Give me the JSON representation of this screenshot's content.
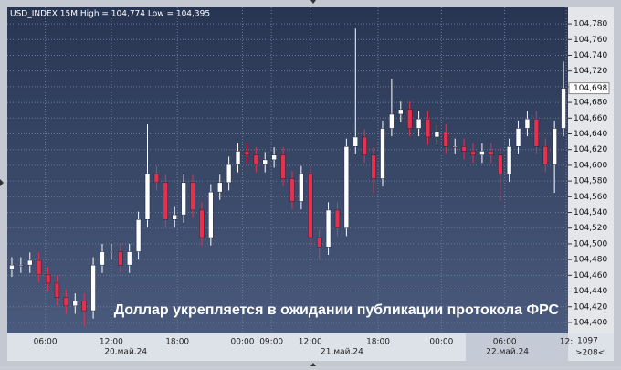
{
  "chart_data": {
    "type": "candlestick",
    "title": "USD_INDEX 15M High = 104,774 Low = 104,395",
    "annotation": "Доллар укрепляется в ожидании публикации протокола ФРС",
    "ylim": [
      104.386,
      104.801
    ],
    "yticks": [
      {
        "value": 104.4,
        "label": "104,400"
      },
      {
        "value": 104.42,
        "label": "104,420"
      },
      {
        "value": 104.44,
        "label": "104,440"
      },
      {
        "value": 104.46,
        "label": "104,460"
      },
      {
        "value": 104.48,
        "label": "104,480"
      },
      {
        "value": 104.5,
        "label": "104,500"
      },
      {
        "value": 104.52,
        "label": "104,520"
      },
      {
        "value": 104.54,
        "label": "104,540"
      },
      {
        "value": 104.56,
        "label": "104,560"
      },
      {
        "value": 104.58,
        "label": "104,580"
      },
      {
        "value": 104.6,
        "label": "104,600"
      },
      {
        "value": 104.62,
        "label": "104,620"
      },
      {
        "value": 104.64,
        "label": "104,640"
      },
      {
        "value": 104.66,
        "label": "104,660"
      },
      {
        "value": 104.68,
        "label": "104,680"
      },
      {
        "value": 104.7,
        "label": "104,700"
      },
      {
        "value": 104.72,
        "label": "104,720"
      },
      {
        "value": 104.74,
        "label": "104,740"
      },
      {
        "value": 104.76,
        "label": "104,760"
      },
      {
        "value": 104.78,
        "label": "104,780"
      }
    ],
    "last_price": {
      "value": 104.698,
      "label": "104,698"
    },
    "xlim": [
      -0.5,
      61.5
    ],
    "xticks": [
      {
        "value": 3.7,
        "label": "06:00"
      },
      {
        "value": 11,
        "label": "12:00"
      },
      {
        "value": 18.3,
        "label": "18:00"
      },
      {
        "value": 25.5,
        "label": "00:00"
      },
      {
        "value": 28.7,
        "label": "09:00"
      },
      {
        "value": 33,
        "label": "12:00"
      },
      {
        "value": 40.5,
        "label": "18:00"
      },
      {
        "value": 47.5,
        "label": "00:00"
      },
      {
        "value": 54.5,
        "label": "06:00"
      },
      {
        "value": 61.3,
        "label": "12:"
      }
    ],
    "date_ticks": [
      {
        "value": 12.6,
        "label": "20.май.24"
      },
      {
        "value": 36.5,
        "label": "21.май.24"
      },
      {
        "value": 54.8,
        "label": "22.май.24"
      }
    ],
    "bar_count": 1097,
    "scroll_label": ">208<",
    "grid": true,
    "up_color": "#ffffff",
    "down_color": "#e8304c",
    "open": [
      104.468,
      104.473,
      104.473,
      104.479,
      104.461,
      104.45,
      104.432,
      104.421,
      104.427,
      104.415,
      104.473,
      104.49,
      104.49,
      104.473,
      104.49,
      104.531,
      104.589,
      104.578,
      104.531,
      104.537,
      104.578,
      104.543,
      104.508,
      104.566,
      104.578,
      104.601,
      104.618,
      104.613,
      104.601,
      104.607,
      104.613,
      104.583,
      104.554,
      104.589,
      104.508,
      104.496,
      104.543,
      104.52,
      104.624,
      104.636,
      104.613,
      104.583,
      104.647,
      104.665,
      104.671,
      104.647,
      104.659,
      104.636,
      104.642,
      104.624,
      104.624,
      104.618,
      104.613,
      104.618,
      104.613,
      104.589,
      104.624,
      104.647,
      104.659,
      104.624,
      104.601,
      104.647
    ],
    "high": [
      104.483,
      104.483,
      104.489,
      104.489,
      104.471,
      104.46,
      104.442,
      104.437,
      104.437,
      104.483,
      104.5,
      104.5,
      104.5,
      104.5,
      104.541,
      104.652,
      104.599,
      104.588,
      104.547,
      104.588,
      104.588,
      104.553,
      104.576,
      104.588,
      104.611,
      104.628,
      104.628,
      104.623,
      104.617,
      104.623,
      104.623,
      104.593,
      104.599,
      104.599,
      104.518,
      104.553,
      104.553,
      104.634,
      104.774,
      104.646,
      104.623,
      104.657,
      104.71,
      104.681,
      104.681,
      104.669,
      104.669,
      104.652,
      104.652,
      104.634,
      104.634,
      104.628,
      104.628,
      104.628,
      104.623,
      104.634,
      104.657,
      104.669,
      104.669,
      104.634,
      104.657,
      104.732
    ],
    "low": [
      104.458,
      104.463,
      104.463,
      104.451,
      104.44,
      104.422,
      104.411,
      104.411,
      104.395,
      104.405,
      104.463,
      104.48,
      104.463,
      104.463,
      104.48,
      104.521,
      104.568,
      104.521,
      104.521,
      104.527,
      104.533,
      104.498,
      104.498,
      104.556,
      104.568,
      104.591,
      104.603,
      104.591,
      104.591,
      104.597,
      104.573,
      104.544,
      104.544,
      104.498,
      104.48,
      104.486,
      104.51,
      104.51,
      104.614,
      104.603,
      104.565,
      104.573,
      104.637,
      104.655,
      104.637,
      104.637,
      104.626,
      104.626,
      104.614,
      104.614,
      104.608,
      104.603,
      104.603,
      104.603,
      104.555,
      104.579,
      104.614,
      104.637,
      104.614,
      104.591,
      104.565,
      104.637
    ],
    "close": [
      104.473,
      104.473,
      104.479,
      104.461,
      104.45,
      104.432,
      104.421,
      104.427,
      104.415,
      104.473,
      104.49,
      104.49,
      104.473,
      104.49,
      104.531,
      104.589,
      104.578,
      104.531,
      104.537,
      104.578,
      104.543,
      104.508,
      104.566,
      104.578,
      104.601,
      104.618,
      104.613,
      104.601,
      104.607,
      104.613,
      104.583,
      104.554,
      104.589,
      104.508,
      104.496,
      104.543,
      104.52,
      104.624,
      104.636,
      104.613,
      104.583,
      104.647,
      104.665,
      104.671,
      104.647,
      104.659,
      104.636,
      104.642,
      104.624,
      104.624,
      104.618,
      104.613,
      104.618,
      104.613,
      104.589,
      104.624,
      104.647,
      104.659,
      104.624,
      104.601,
      104.647,
      104.698
    ]
  }
}
